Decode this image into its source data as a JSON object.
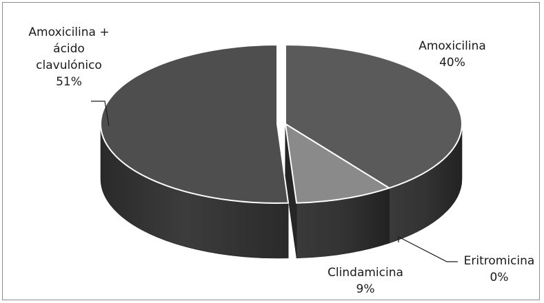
{
  "chart_data": {
    "type": "pie",
    "variant": "3d-exploded",
    "title": "",
    "slices": [
      {
        "name": "Amoxicilina",
        "percent": 40,
        "label": "40%",
        "color": "#5a5a5a",
        "side_color": "#2e2e2e"
      },
      {
        "name": "Clindamicina",
        "percent": 9,
        "label": "9%",
        "color": "#8a8a8a",
        "side_color": "#3a3a3a"
      },
      {
        "name": "Eritromicina",
        "percent": 0,
        "label": "0%",
        "color": "#6a6a6a",
        "side_color": "#333333"
      },
      {
        "name": "Amoxicilina + ácido clavulónico",
        "name_lines": [
          "Amoxicilina +",
          "ácido",
          "clavulónico"
        ],
        "percent": 51,
        "label": "51%",
        "color": "#4e4e4e",
        "side_color": "#2c2c2c"
      }
    ],
    "legend": "none",
    "labels": "outside with leader lines"
  }
}
